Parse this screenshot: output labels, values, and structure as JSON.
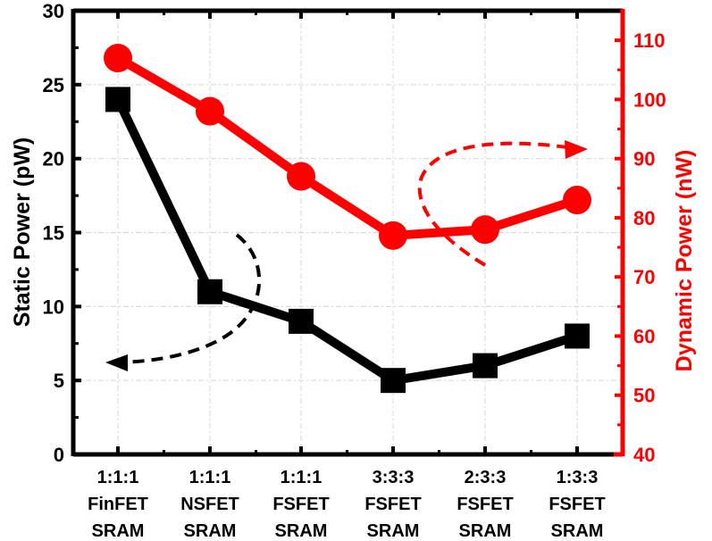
{
  "chart_data": {
    "type": "line",
    "title": "",
    "xlabel": "",
    "categories": [
      [
        "1:1:1",
        "FinFET",
        "SRAM"
      ],
      [
        "1:1:1",
        "NSFET",
        "SRAM"
      ],
      [
        "1:1:1",
        "FSFET",
        "SRAM"
      ],
      [
        "3:3:3",
        "FSFET",
        "SRAM"
      ],
      [
        "2:3:3",
        "FSFET",
        "SRAM"
      ],
      [
        "1:3:3",
        "FSFET",
        "SRAM"
      ]
    ],
    "series": [
      {
        "name": "Static Power",
        "axis": "left",
        "unit": "pW",
        "marker": "square",
        "color": "#000000",
        "values": [
          24,
          11,
          9,
          5,
          6,
          8
        ]
      },
      {
        "name": "Dynamic Power",
        "axis": "right",
        "unit": "nW",
        "marker": "circle",
        "color": "#ff0000",
        "values": [
          107,
          98,
          87,
          77,
          78,
          83
        ]
      }
    ],
    "left_axis": {
      "label": "Static Power (pW)",
      "ylim": [
        0,
        30
      ],
      "ticks": [
        "0",
        "5",
        "10",
        "15",
        "20",
        "25",
        "30"
      ],
      "color": "#000000"
    },
    "right_axis": {
      "label": "Dynamic Power (nW)",
      "ylim": [
        40,
        115
      ],
      "ticks": [
        "40",
        "50",
        "60",
        "70",
        "80",
        "90",
        "100",
        "110"
      ],
      "color": "#ff0000"
    },
    "grid": true,
    "annotations": [
      {
        "type": "dashed-arrow",
        "color": "#000000",
        "points_to": "left axis"
      },
      {
        "type": "dashed-arrow",
        "color": "#ff0000",
        "points_to": "right axis"
      }
    ]
  }
}
